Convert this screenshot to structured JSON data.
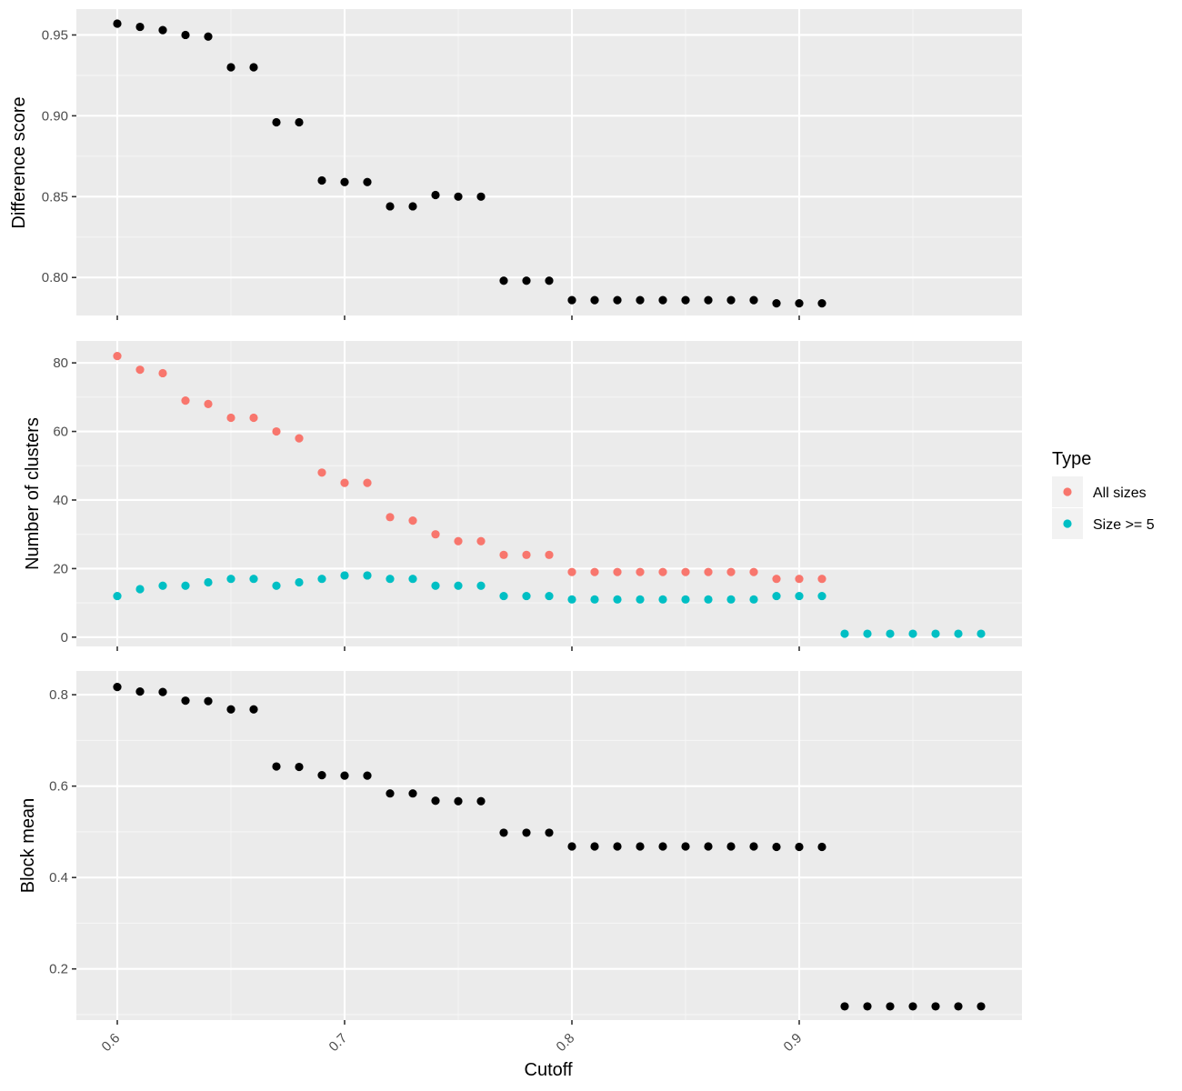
{
  "chart_data": [
    {
      "id": "difference",
      "type": "scatter",
      "ylabel": "Difference score",
      "xlim": [
        0.582,
        0.998
      ],
      "ylim": [
        0.7765,
        0.966
      ],
      "x_ticks": [
        0.6,
        0.7,
        0.8,
        0.9
      ],
      "y_ticks": [
        0.8,
        0.85,
        0.9,
        0.95
      ],
      "y_tick_labels": [
        "0.80",
        "0.85",
        "0.90",
        "0.95"
      ],
      "grid": true,
      "series": [
        {
          "color": "#000000",
          "points": [
            [
              0.6,
              0.957
            ],
            [
              0.61,
              0.955
            ],
            [
              0.62,
              0.953
            ],
            [
              0.63,
              0.95
            ],
            [
              0.64,
              0.949
            ],
            [
              0.65,
              0.93
            ],
            [
              0.66,
              0.93
            ],
            [
              0.67,
              0.896
            ],
            [
              0.68,
              0.896
            ],
            [
              0.69,
              0.86
            ],
            [
              0.7,
              0.859
            ],
            [
              0.71,
              0.859
            ],
            [
              0.72,
              0.844
            ],
            [
              0.73,
              0.844
            ],
            [
              0.74,
              0.851
            ],
            [
              0.75,
              0.85
            ],
            [
              0.76,
              0.85
            ],
            [
              0.77,
              0.798
            ],
            [
              0.78,
              0.798
            ],
            [
              0.79,
              0.798
            ],
            [
              0.8,
              0.786
            ],
            [
              0.81,
              0.786
            ],
            [
              0.82,
              0.786
            ],
            [
              0.83,
              0.786
            ],
            [
              0.84,
              0.786
            ],
            [
              0.85,
              0.786
            ],
            [
              0.86,
              0.786
            ],
            [
              0.87,
              0.786
            ],
            [
              0.88,
              0.786
            ],
            [
              0.89,
              0.784
            ],
            [
              0.9,
              0.784
            ],
            [
              0.91,
              0.784
            ]
          ]
        }
      ]
    },
    {
      "id": "clusters",
      "type": "scatter",
      "ylabel": "Number of clusters",
      "xlim": [
        0.582,
        0.998
      ],
      "ylim": [
        -2.7,
        86.4
      ],
      "x_ticks": [
        0.6,
        0.7,
        0.8,
        0.9
      ],
      "y_ticks": [
        0,
        20,
        40,
        60,
        80
      ],
      "y_tick_labels": [
        "0",
        "20",
        "40",
        "60",
        "80"
      ],
      "grid": true,
      "series": [
        {
          "name": "All sizes",
          "color": "#F8766D",
          "points": [
            [
              0.6,
              82
            ],
            [
              0.61,
              78
            ],
            [
              0.62,
              77
            ],
            [
              0.63,
              69
            ],
            [
              0.64,
              68
            ],
            [
              0.65,
              64
            ],
            [
              0.66,
              64
            ],
            [
              0.67,
              60
            ],
            [
              0.68,
              58
            ],
            [
              0.69,
              48
            ],
            [
              0.7,
              45
            ],
            [
              0.71,
              45
            ],
            [
              0.72,
              35
            ],
            [
              0.73,
              34
            ],
            [
              0.74,
              30
            ],
            [
              0.75,
              28
            ],
            [
              0.76,
              28
            ],
            [
              0.77,
              24
            ],
            [
              0.78,
              24
            ],
            [
              0.79,
              24
            ],
            [
              0.8,
              19
            ],
            [
              0.81,
              19
            ],
            [
              0.82,
              19
            ],
            [
              0.83,
              19
            ],
            [
              0.84,
              19
            ],
            [
              0.85,
              19
            ],
            [
              0.86,
              19
            ],
            [
              0.87,
              19
            ],
            [
              0.88,
              19
            ],
            [
              0.89,
              17
            ],
            [
              0.9,
              17
            ],
            [
              0.91,
              17
            ]
          ]
        },
        {
          "name": "Size >= 5",
          "color": "#00BFC4",
          "points": [
            [
              0.6,
              12
            ],
            [
              0.61,
              14
            ],
            [
              0.62,
              15
            ],
            [
              0.63,
              15
            ],
            [
              0.64,
              16
            ],
            [
              0.65,
              17
            ],
            [
              0.66,
              17
            ],
            [
              0.67,
              15
            ],
            [
              0.68,
              16
            ],
            [
              0.69,
              17
            ],
            [
              0.7,
              18
            ],
            [
              0.71,
              18
            ],
            [
              0.72,
              17
            ],
            [
              0.73,
              17
            ],
            [
              0.74,
              15
            ],
            [
              0.75,
              15
            ],
            [
              0.76,
              15
            ],
            [
              0.77,
              12
            ],
            [
              0.78,
              12
            ],
            [
              0.79,
              12
            ],
            [
              0.8,
              11
            ],
            [
              0.81,
              11
            ],
            [
              0.82,
              11
            ],
            [
              0.83,
              11
            ],
            [
              0.84,
              11
            ],
            [
              0.85,
              11
            ],
            [
              0.86,
              11
            ],
            [
              0.87,
              11
            ],
            [
              0.88,
              11
            ],
            [
              0.89,
              12
            ],
            [
              0.9,
              12
            ],
            [
              0.91,
              12
            ],
            [
              0.92,
              1
            ],
            [
              0.93,
              1
            ],
            [
              0.94,
              1
            ],
            [
              0.95,
              1
            ],
            [
              0.96,
              1
            ],
            [
              0.97,
              1
            ],
            [
              0.98,
              1
            ]
          ]
        }
      ]
    },
    {
      "id": "blockmean",
      "type": "scatter",
      "ylabel": "Block mean",
      "xlabel": "Cutoff",
      "xlim": [
        0.582,
        0.998
      ],
      "ylim": [
        0.088,
        0.852
      ],
      "x_ticks": [
        0.6,
        0.7,
        0.8,
        0.9
      ],
      "x_tick_labels": [
        "0.6",
        "0.7",
        "0.8",
        "0.9"
      ],
      "y_ticks": [
        0.2,
        0.4,
        0.6,
        0.8
      ],
      "y_tick_labels": [
        "0.2",
        "0.4",
        "0.6",
        "0.8"
      ],
      "grid": true,
      "series": [
        {
          "color": "#000000",
          "points": [
            [
              0.6,
              0.817
            ],
            [
              0.61,
              0.807
            ],
            [
              0.62,
              0.806
            ],
            [
              0.63,
              0.787
            ],
            [
              0.64,
              0.786
            ],
            [
              0.65,
              0.768
            ],
            [
              0.66,
              0.768
            ],
            [
              0.67,
              0.643
            ],
            [
              0.68,
              0.642
            ],
            [
              0.69,
              0.624
            ],
            [
              0.7,
              0.623
            ],
            [
              0.71,
              0.623
            ],
            [
              0.72,
              0.584
            ],
            [
              0.73,
              0.584
            ],
            [
              0.74,
              0.568
            ],
            [
              0.75,
              0.567
            ],
            [
              0.76,
              0.567
            ],
            [
              0.77,
              0.498
            ],
            [
              0.78,
              0.498
            ],
            [
              0.79,
              0.498
            ],
            [
              0.8,
              0.468
            ],
            [
              0.81,
              0.468
            ],
            [
              0.82,
              0.468
            ],
            [
              0.83,
              0.468
            ],
            [
              0.84,
              0.468
            ],
            [
              0.85,
              0.468
            ],
            [
              0.86,
              0.468
            ],
            [
              0.87,
              0.468
            ],
            [
              0.88,
              0.468
            ],
            [
              0.89,
              0.467
            ],
            [
              0.9,
              0.467
            ],
            [
              0.91,
              0.467
            ],
            [
              0.92,
              0.118
            ],
            [
              0.93,
              0.118
            ],
            [
              0.94,
              0.118
            ],
            [
              0.95,
              0.118
            ],
            [
              0.96,
              0.118
            ],
            [
              0.97,
              0.118
            ],
            [
              0.98,
              0.118
            ]
          ]
        }
      ]
    }
  ],
  "legend": {
    "title": "Type",
    "position": "right",
    "items": [
      {
        "label": "All sizes",
        "color": "#F8766D"
      },
      {
        "label": "Size >= 5",
        "color": "#00BFC4"
      }
    ]
  },
  "colors": {
    "panel_background": "#EBEBEB",
    "grid_major": "#FFFFFF",
    "grid_minor": "#F5F5F5",
    "tick_text": "#4D4D4D",
    "tick_mark": "#333333"
  }
}
